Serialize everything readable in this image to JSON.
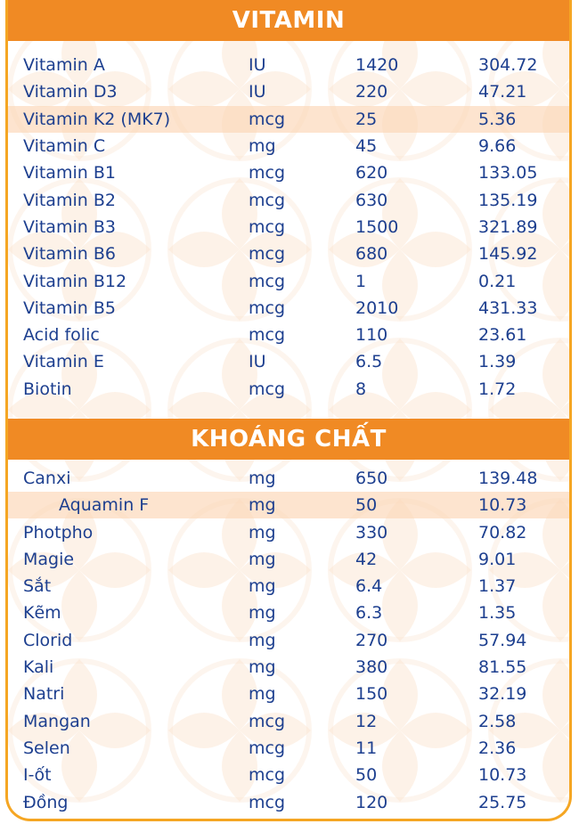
{
  "vitamin_section": {
    "title": "VITAMIN",
    "rows": [
      {
        "name": "Vitamin A",
        "unit": "IU",
        "value": "1420",
        "per": "304.72"
      },
      {
        "name": "Vitamin D3",
        "unit": "IU",
        "value": "220",
        "per": "47.21"
      },
      {
        "name": "Vitamin K2 (MK7)",
        "unit": "mcg",
        "value": "25",
        "per": "5.36"
      },
      {
        "name": "Vitamin C",
        "unit": "mg",
        "value": "45",
        "per": "9.66"
      },
      {
        "name": "Vitamin B1",
        "unit": "mcg",
        "value": "620",
        "per": "133.05"
      },
      {
        "name": "Vitamin B2",
        "unit": "mcg",
        "value": "630",
        "per": "135.19"
      },
      {
        "name": "Vitamin B3",
        "unit": "mcg",
        "value": "1500",
        "per": "321.89"
      },
      {
        "name": "Vitamin B6",
        "unit": "mcg",
        "value": "680",
        "per": "145.92"
      },
      {
        "name": "Vitamin B12",
        "unit": "mcg",
        "value": "1",
        "per": "0.21"
      },
      {
        "name": "Vitamin B5",
        "unit": "mcg",
        "value": "2010",
        "per": "431.33"
      },
      {
        "name": "Acid folic",
        "unit": "mcg",
        "value": "110",
        "per": "23.61"
      },
      {
        "name": "Vitamin E",
        "unit": "IU",
        "value": "6.5",
        "per": "1.39"
      },
      {
        "name": "Biotin",
        "unit": "mcg",
        "value": "8",
        "per": "1.72"
      }
    ]
  },
  "mineral_section": {
    "title": "KHOÁNG CHẤT",
    "rows": [
      {
        "name": "Canxi",
        "unit": "mg",
        "value": "650",
        "per": "139.48"
      },
      {
        "name": "Aquamin F",
        "unit": "mg",
        "value": "50",
        "per": "10.73"
      },
      {
        "name": "Photpho",
        "unit": "mg",
        "value": "330",
        "per": "70.82"
      },
      {
        "name": "Magie",
        "unit": "mg",
        "value": "42",
        "per": "9.01"
      },
      {
        "name": "Sắt",
        "unit": "mg",
        "value": "6.4",
        "per": "1.37"
      },
      {
        "name": "Kẽm",
        "unit": "mg",
        "value": "6.3",
        "per": "1.35"
      },
      {
        "name": "Clorid",
        "unit": "mg",
        "value": "270",
        "per": "57.94"
      },
      {
        "name": "Kali",
        "unit": "mg",
        "value": "380",
        "per": "81.55"
      },
      {
        "name": "Natri",
        "unit": "mg",
        "value": "150",
        "per": "32.19"
      },
      {
        "name": "Mangan",
        "unit": "mcg",
        "value": "12",
        "per": "2.58"
      },
      {
        "name": "Selen",
        "unit": "mcg",
        "value": "11",
        "per": "2.36"
      },
      {
        "name": "I-ốt",
        "unit": "mcg",
        "value": "50",
        "per": "10.73"
      },
      {
        "name": "Đồng",
        "unit": "mcg",
        "value": "120",
        "per": "25.75"
      }
    ]
  },
  "colors": {
    "header_bg": "#f08a24",
    "text": "#1d3f8f",
    "border": "#f5a623",
    "pattern": "#fbe3cf"
  }
}
